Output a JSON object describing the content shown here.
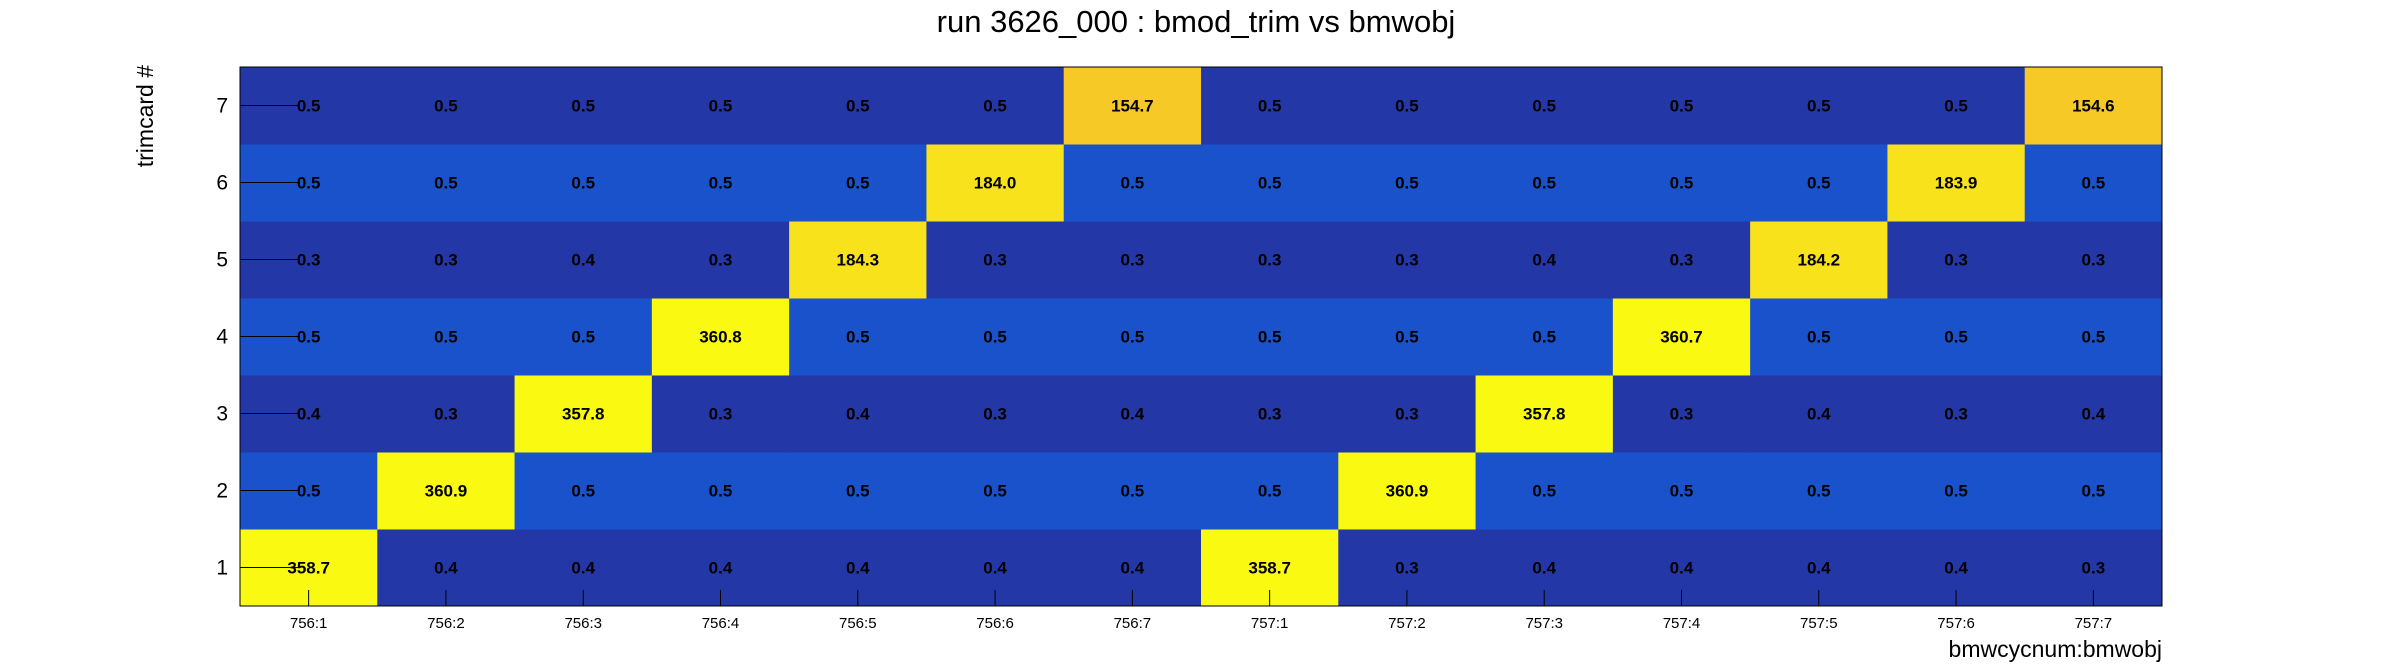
{
  "chart_data": {
    "type": "heatmap",
    "title": "run 3626_000 : bmod_trim vs bmwobj",
    "xlabel": "bmwcycnum:bmwobj",
    "ylabel": "trimcard #",
    "x_categories": [
      "756:1",
      "756:2",
      "756:3",
      "756:4",
      "756:5",
      "756:6",
      "756:7",
      "757:1",
      "757:2",
      "757:3",
      "757:4",
      "757:5",
      "757:6",
      "757:7"
    ],
    "y_categories": [
      "1",
      "2",
      "3",
      "4",
      "5",
      "6",
      "7"
    ],
    "values": [
      [
        "358.7",
        "0.4",
        "0.4",
        "0.4",
        "0.4",
        "0.4",
        "0.4",
        "358.7",
        "0.3",
        "0.4",
        "0.4",
        "0.4",
        "0.4",
        "0.3"
      ],
      [
        "0.5",
        "360.9",
        "0.5",
        "0.5",
        "0.5",
        "0.5",
        "0.5",
        "0.5",
        "360.9",
        "0.5",
        "0.5",
        "0.5",
        "0.5",
        "0.5"
      ],
      [
        "0.4",
        "0.3",
        "357.8",
        "0.3",
        "0.4",
        "0.3",
        "0.4",
        "0.3",
        "0.3",
        "357.8",
        "0.3",
        "0.4",
        "0.3",
        "0.4"
      ],
      [
        "0.5",
        "0.5",
        "0.5",
        "360.8",
        "0.5",
        "0.5",
        "0.5",
        "0.5",
        "0.5",
        "0.5",
        "360.7",
        "0.5",
        "0.5",
        "0.5"
      ],
      [
        "0.3",
        "0.3",
        "0.4",
        "0.3",
        "184.3",
        "0.3",
        "0.3",
        "0.3",
        "0.3",
        "0.4",
        "0.3",
        "184.2",
        "0.3",
        "0.3"
      ],
      [
        "0.5",
        "0.5",
        "0.5",
        "0.5",
        "0.5",
        "184.0",
        "0.5",
        "0.5",
        "0.5",
        "0.5",
        "0.5",
        "0.5",
        "183.9",
        "0.5"
      ],
      [
        "0.5",
        "0.5",
        "0.5",
        "0.5",
        "0.5",
        "0.5",
        "154.7",
        "0.5",
        "0.5",
        "0.5",
        "0.5",
        "0.5",
        "0.5",
        "154.6"
      ]
    ],
    "colors": {
      "low_odd_rows": "#2338a6",
      "low_even_rows": "#1a52cc",
      "high_360": "#f9f912",
      "high_184": "#f7e21c",
      "high_154": "#f7c927"
    },
    "grid": false,
    "legend": "none"
  }
}
